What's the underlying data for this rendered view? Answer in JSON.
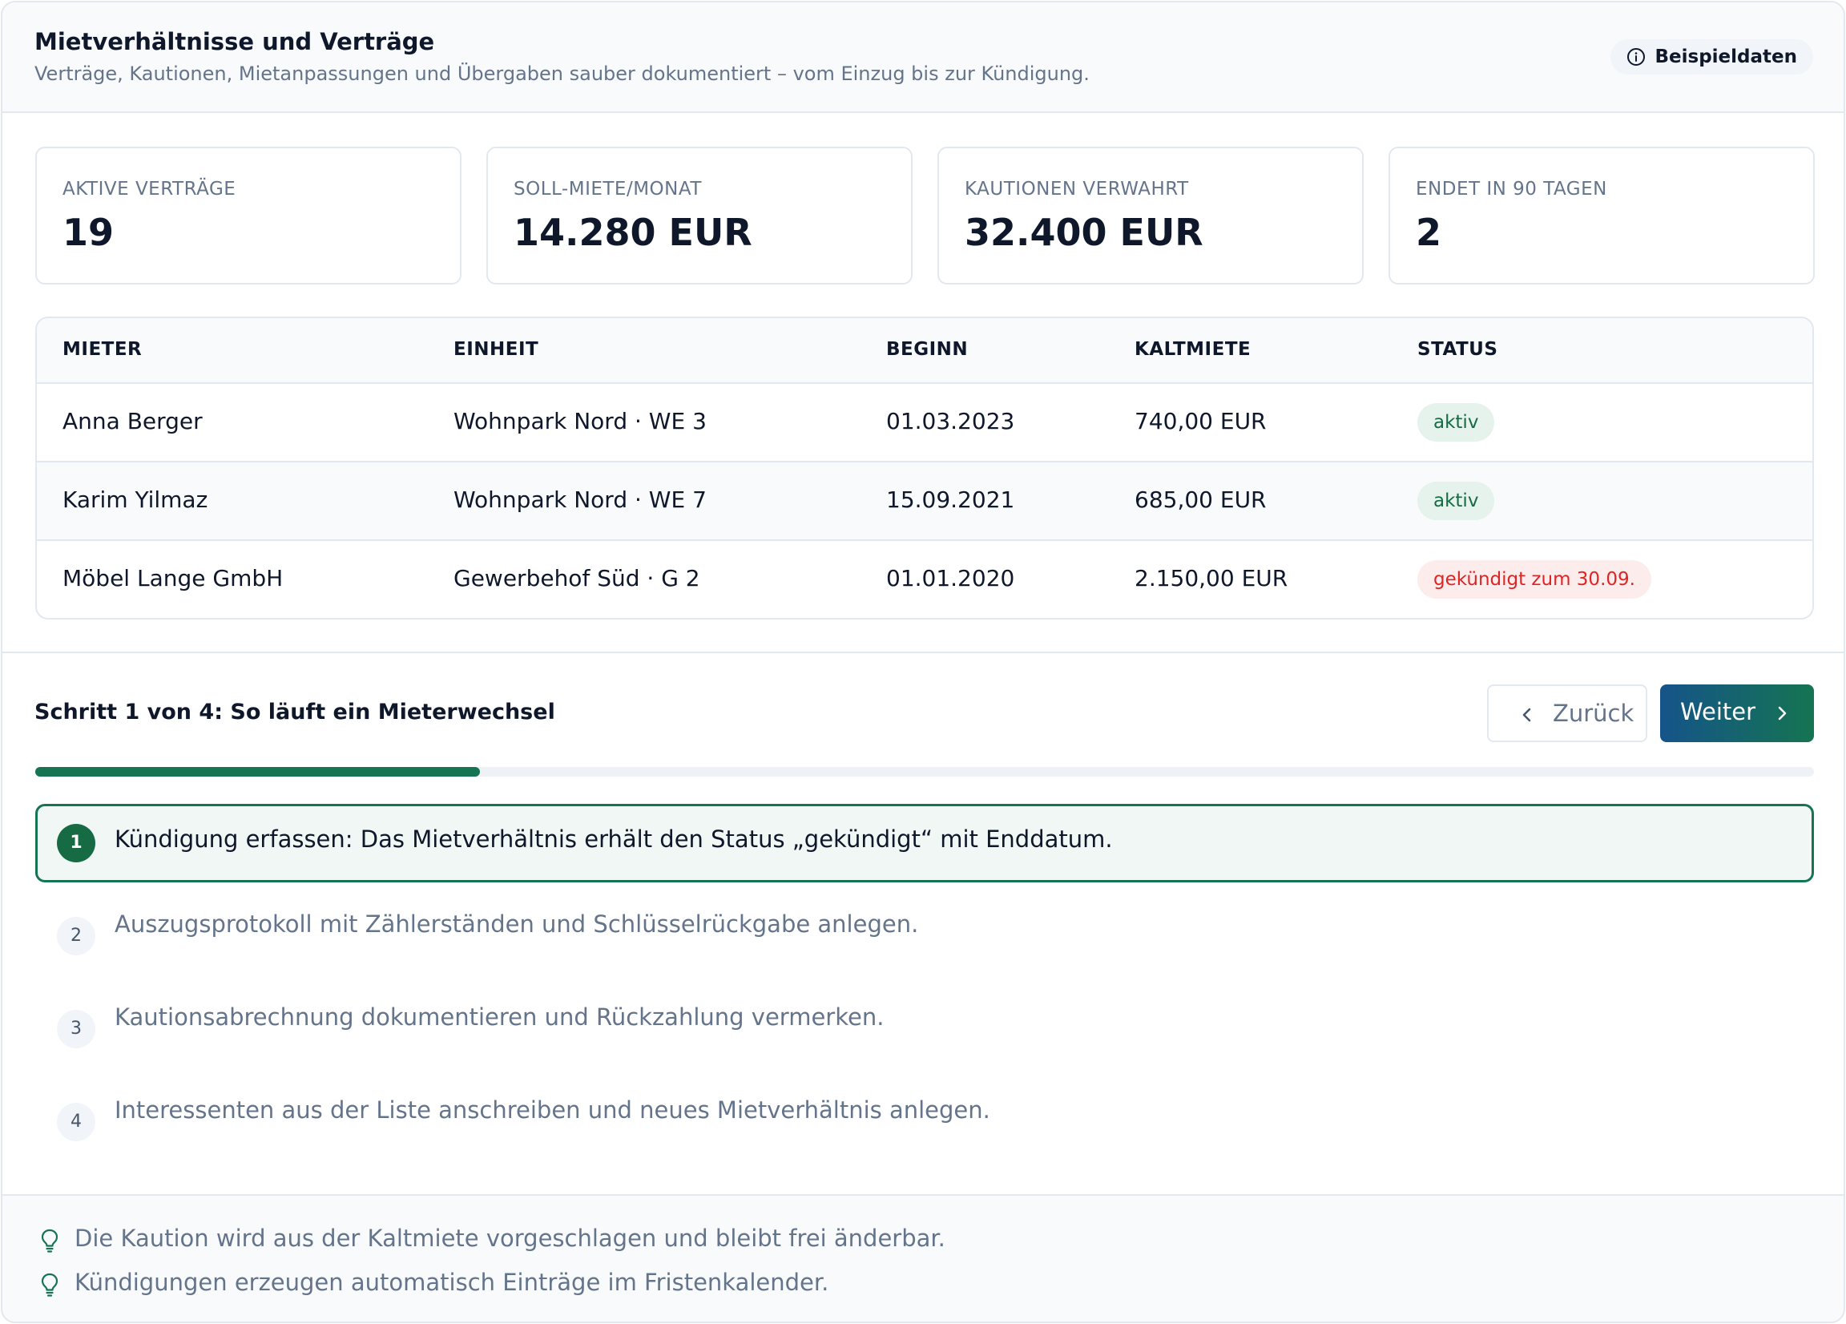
{
  "header": {
    "title": "Mietverhältnisse und Verträge",
    "subtitle": "Verträge, Kautionen, Mietanpassungen und Übergaben sauber dokumentiert – vom Einzug bis zur Kündigung.",
    "badge": "Beispieldaten",
    "badge_icon": "info-icon"
  },
  "stats": [
    {
      "label": "AKTIVE VERTRÄGE",
      "value": "19"
    },
    {
      "label": "SOLL-MIETE/MONAT",
      "value": "14.280 EUR"
    },
    {
      "label": "KAUTIONEN VERWAHRT",
      "value": "32.400 EUR"
    },
    {
      "label": "ENDET IN 90 TAGEN",
      "value": "2"
    }
  ],
  "table": {
    "columns": [
      "MIETER",
      "EINHEIT",
      "BEGINN",
      "KALTMIETE",
      "STATUS"
    ],
    "rows": [
      {
        "tenant": "Anna Berger",
        "unit": "Wohnpark Nord · WE 3",
        "start": "01.03.2023",
        "rent": "740,00 EUR",
        "status": "aktiv",
        "status_type": "active"
      },
      {
        "tenant": "Karim Yilmaz",
        "unit": "Wohnpark Nord · WE 7",
        "start": "15.09.2021",
        "rent": "685,00 EUR",
        "status": "aktiv",
        "status_type": "active"
      },
      {
        "tenant": "Möbel Lange GmbH",
        "unit": "Gewerbehof Süd · G 2",
        "start": "01.01.2020",
        "rent": "2.150,00 EUR",
        "status": "gekündigt zum 30.09.",
        "status_type": "cancelled"
      }
    ]
  },
  "walkthrough": {
    "title": "Schritt 1 von 4: So läuft ein Mieterwechsel",
    "back_label": "Zurück",
    "next_label": "Weiter",
    "progress": 0.25,
    "steps": [
      {
        "num": "1",
        "text": "Kündigung erfassen: Das Mietverhältnis erhält den Status „gekündigt“ mit Enddatum."
      },
      {
        "num": "2",
        "text": "Auszugsprotokoll mit Zählerständen und Schlüsselrückgabe anlegen."
      },
      {
        "num": "3",
        "text": "Kautionsabrechnung dokumentieren und Rückzahlung vermerken."
      },
      {
        "num": "4",
        "text": "Interessenten aus der Liste anschreiben und neues Mietverhältnis anlegen."
      }
    ]
  },
  "tips": [
    {
      "icon": "lightbulb-icon",
      "text": "Die Kaution wird aus der Kaltmiete vorgeschlagen und bleibt frei änderbar."
    },
    {
      "icon": "lightbulb-icon",
      "text": "Kündigungen erzeugen automatisch Einträge im Fristenkalender."
    }
  ],
  "colors": {
    "accent_green": "#157451",
    "accent_blue": "#15548a",
    "danger": "#dc2626",
    "muted_text": "#64748b"
  }
}
